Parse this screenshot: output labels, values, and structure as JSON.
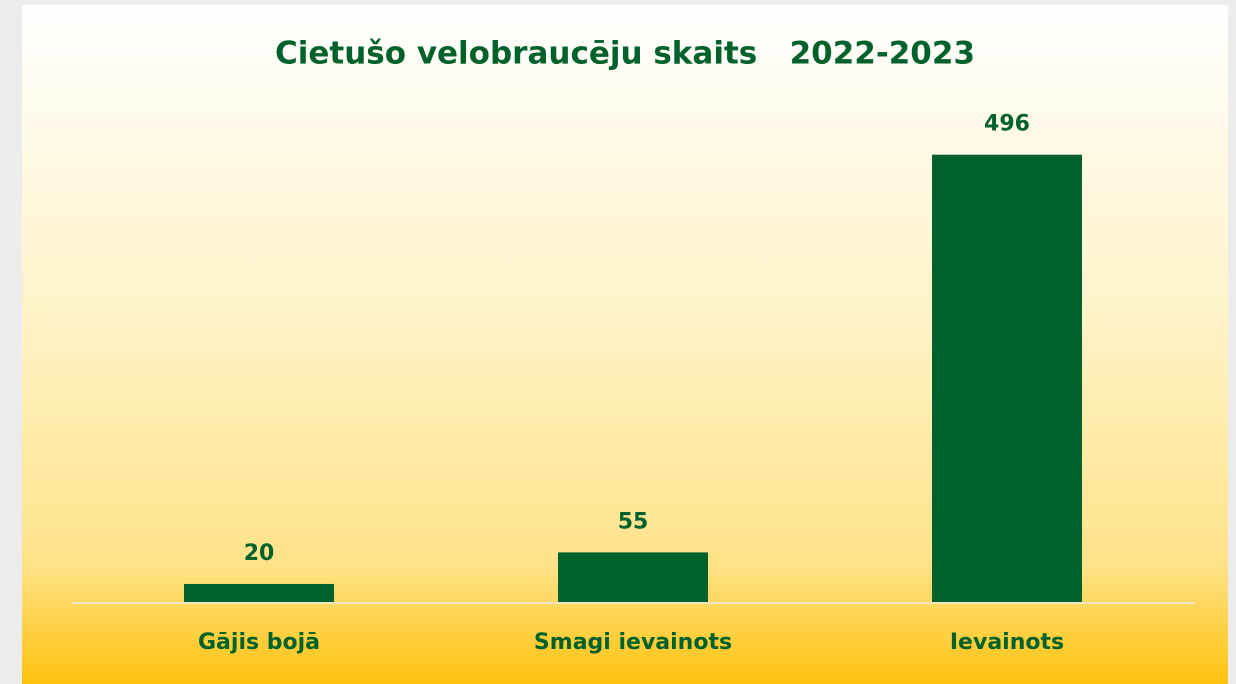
{
  "chart_data": {
    "type": "bar",
    "title": "Cietušo velobraucēju skaits   2022-2023",
    "categories": [
      "Gājis bojā",
      "Smagi ievainots",
      "Ievainots"
    ],
    "values": [
      20,
      55,
      496
    ],
    "color": "#00622a",
    "ylim": [
      0,
      550
    ],
    "grid": false
  }
}
